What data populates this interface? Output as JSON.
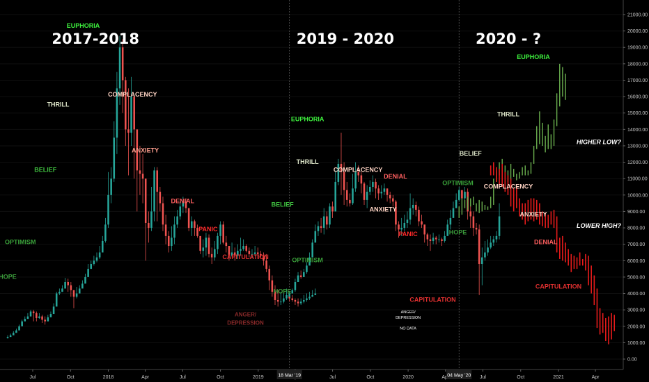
{
  "chart_data": {
    "type": "candlestick",
    "titles": [
      {
        "text": "2017-2018",
        "x": "2017-12"
      },
      {
        "text": "2019 - 2020",
        "x": "2019-08"
      },
      {
        "text": "2020 - ?",
        "x": "2020-09"
      }
    ],
    "y_axis": {
      "ylim": [
        -300,
        21500
      ],
      "ticks": [
        "0.00",
        "1000.00",
        "2000.00",
        "3000.00",
        "4000.00",
        "5000.00",
        "6000.00",
        "7000.00",
        "8000.00",
        "9000.00",
        "10000.00",
        "11000.00",
        "12000.00",
        "13000.00",
        "14000.00",
        "15000.00",
        "16000.00",
        "17000.00",
        "18000.00",
        "19000.00",
        "20000.00",
        "21000.00"
      ],
      "tick_values": [
        0,
        1000,
        2000,
        3000,
        4000,
        5000,
        6000,
        7000,
        8000,
        9000,
        10000,
        11000,
        12000,
        13000,
        14000,
        15000,
        16000,
        17000,
        18000,
        19000,
        20000,
        21000
      ]
    },
    "x_axis": {
      "ticks": [
        {
          "label": "Jul",
          "date": "2017-07"
        },
        {
          "label": "Oct",
          "date": "2017-10"
        },
        {
          "label": "2018",
          "date": "2018-01"
        },
        {
          "label": "Apr",
          "date": "2018-04"
        },
        {
          "label": "Jul",
          "date": "2018-07"
        },
        {
          "label": "Oct",
          "date": "2018-10"
        },
        {
          "label": "2019",
          "date": "2019-01"
        },
        {
          "label": "Apr",
          "date": "2019-04"
        },
        {
          "label": "Jul",
          "date": "2019-07"
        },
        {
          "label": "Oct",
          "date": "2019-10"
        },
        {
          "label": "2020",
          "date": "2020-01"
        },
        {
          "label": "Apr",
          "date": "2020-04"
        },
        {
          "label": "Jul",
          "date": "2020-07"
        },
        {
          "label": "Oct",
          "date": "2020-10"
        },
        {
          "label": "2021",
          "date": "2021-01"
        },
        {
          "label": "Apr",
          "date": "2021-04"
        }
      ],
      "markers": [
        {
          "label": "18 Mar '19",
          "date": "2019-03-18"
        },
        {
          "label": "04 May '20",
          "date": "2020-05-04"
        }
      ]
    },
    "phase_labels": [
      {
        "text": "HOPE",
        "color": "#3a9a3a",
        "date": "2017-05",
        "y": 4900
      },
      {
        "text": "OPTIMISM",
        "color": "#3aa13a",
        "date": "2017-06",
        "y": 7000
      },
      {
        "text": "BELIEF",
        "color": "#3fbf3f",
        "date": "2017-08",
        "y": 11400
      },
      {
        "text": "THRILL",
        "color": "#dde5c8",
        "date": "2017-09",
        "y": 15400
      },
      {
        "text": "EUPHORIA",
        "color": "#3ef03e",
        "date": "2017-11",
        "y": 20200
      },
      {
        "text": "COMPLACENCY",
        "color": "#ffd4c4",
        "date": "2018-03",
        "y": 16000
      },
      {
        "text": "ANXIETY",
        "color": "#ff9f8f",
        "date": "2018-04",
        "y": 12600
      },
      {
        "text": "DENIAL",
        "color": "#ff5f5f",
        "date": "2018-07",
        "y": 9500
      },
      {
        "text": "PANIC",
        "color": "#ff2a2a",
        "date": "2018-09",
        "y": 7800
      },
      {
        "text": "CAPITULATION",
        "color": "#e23030",
        "date": "2018-12",
        "y": 6100
      },
      {
        "text": "ANGER/",
        "color": "#8a2a2a",
        "date": "2018-12",
        "y": 2600
      },
      {
        "text": "DEPRESSION",
        "color": "#8a2a2a",
        "date": "2018-12",
        "y": 2100
      },
      {
        "text": "HOPE",
        "color": "#3a9a3a",
        "date": "2019-03",
        "y": 4000
      },
      {
        "text": "BELIEF",
        "color": "#3fbf3f",
        "date": "2019-03",
        "y": 9300
      },
      {
        "text": "OPTIMISM",
        "color": "#3aa13a",
        "date": "2019-05",
        "y": 5900
      },
      {
        "text": "THRILL",
        "color": "#dde5c8",
        "date": "2019-05",
        "y": 11900
      },
      {
        "text": "EUPHORIA",
        "color": "#3ef03e",
        "date": "2019-05",
        "y": 14500
      },
      {
        "text": "COMPLACENCY",
        "color": "#ffd4c4",
        "date": "2019-09",
        "y": 11400
      },
      {
        "text": "DENIAL",
        "color": "#ff5f5f",
        "date": "2019-12",
        "y": 11000
      },
      {
        "text": "ANXIETY",
        "color": "#ffd4c4",
        "date": "2019-11",
        "y": 9000
      },
      {
        "text": "PANIC",
        "color": "#ff2a2a",
        "date": "2020-01",
        "y": 7500
      },
      {
        "text": "CAPITULATION",
        "color": "#e23030",
        "date": "2020-03",
        "y": 3500
      },
      {
        "text": "ANGER/",
        "color": "#ffffff",
        "date": "2020-01",
        "y": 2800
      },
      {
        "text": "DEPRESSION",
        "color": "#ffffff",
        "date": "2020-01",
        "y": 2450
      },
      {
        "text": "NO DATA",
        "color": "#ffffff",
        "date": "2020-01",
        "y": 1800
      },
      {
        "text": "HOPE",
        "color": "#3a9a3a",
        "date": "2020-05",
        "y": 7600
      },
      {
        "text": "OPTIMISM",
        "color": "#3aa13a",
        "date": "2020-05",
        "y": 10600
      },
      {
        "text": "BELIEF",
        "color": "#dde5c8",
        "date": "2020-06",
        "y": 12400
      },
      {
        "text": "THRILL",
        "color": "#dde5c8",
        "date": "2020-09",
        "y": 14800
      },
      {
        "text": "EUPHORIA",
        "color": "#3ef03e",
        "date": "2020-11",
        "y": 18300
      },
      {
        "text": "COMPLACENCY",
        "color": "#ffd4c4",
        "date": "2020-09",
        "y": 10400
      },
      {
        "text": "ANXIETY",
        "color": "#ffd4c4",
        "date": "2020-11",
        "y": 8700
      },
      {
        "text": "DENIAL",
        "color": "#ff5f5f",
        "date": "2020-12",
        "y": 7000
      },
      {
        "text": "CAPITULATION",
        "color": "#e23030",
        "date": "2021-01",
        "y": 4300
      }
    ],
    "side_questions": [
      {
        "text": "HIGHER LOW?",
        "y": 13100
      },
      {
        "text": "LOWER HIGH?",
        "y": 8000
      }
    ],
    "series_2017_2018": {
      "start_date": "2017-05-01",
      "step_days": 7,
      "color_up": "#26a69a",
      "color_down": "#ef5350",
      "close": [
        1350,
        1450,
        1600,
        1750,
        2000,
        2300,
        2450,
        2600,
        2900,
        2800,
        2500,
        2600,
        2400,
        2300,
        2550,
        2750,
        3200,
        4000,
        4100,
        4300,
        4700,
        4500,
        4200,
        3800,
        4000,
        4300,
        4600,
        5000,
        5500,
        5800,
        6000,
        6200,
        6500,
        7200,
        8200,
        10000,
        11000,
        13500,
        16500,
        19000,
        17000,
        14000,
        13800,
        16000,
        14000,
        11500,
        11300,
        11000,
        8300,
        8000,
        9000,
        11500,
        10200,
        9500,
        8200,
        7500,
        6900,
        7400,
        8200,
        8700,
        9300,
        9600,
        9200,
        8000,
        8400,
        8000,
        7500,
        6600,
        6800,
        7400,
        6400,
        6200,
        6700,
        7500,
        8200,
        7100,
        6900,
        6300,
        6500,
        6300,
        6600,
        6700,
        6900,
        6600,
        6400,
        6400,
        6500,
        6400,
        6300,
        6000,
        5500,
        4800,
        4100,
        3600,
        3500,
        3500,
        3700,
        3900,
        3700,
        3600,
        3500,
        3400,
        3500,
        3600,
        3700,
        3800,
        3900,
        4000
      ],
      "high": [
        1450,
        1550,
        1700,
        1850,
        2100,
        2400,
        2600,
        2800,
        3000,
        3000,
        2900,
        2800,
        2700,
        2600,
        2700,
        2900,
        3400,
        4100,
        4300,
        4500,
        4950,
        4900,
        4700,
        4200,
        4400,
        4500,
        4800,
        5200,
        5800,
        6000,
        6300,
        6500,
        6900,
        7500,
        8600,
        11400,
        11700,
        14500,
        17500,
        19700,
        19500,
        17200,
        16500,
        17200,
        16000,
        13800,
        13000,
        12500,
        11000,
        9000,
        10500,
        11700,
        11700,
        10500,
        9900,
        8800,
        7800,
        8100,
        8700,
        9100,
        9600,
        9900,
        9800,
        8800,
        8700,
        8500,
        8200,
        7200,
        7300,
        7700,
        7600,
        6800,
        7200,
        7700,
        8400,
        8400,
        7500,
        6900,
        7100,
        6800,
        7000,
        7400,
        7300,
        7000,
        6800,
        6700,
        6900,
        6800,
        6600,
        6500,
        6400,
        5700,
        5100,
        4500,
        4200,
        4100,
        4100,
        4300,
        4100,
        3900,
        3700,
        3700,
        3700,
        3900,
        4000,
        4100,
        4200,
        4300
      ],
      "low": [
        1250,
        1350,
        1500,
        1650,
        1850,
        2100,
        2300,
        2450,
        2600,
        2300,
        2300,
        2450,
        2200,
        2100,
        2300,
        2600,
        3000,
        3600,
        3900,
        4100,
        4300,
        4100,
        3800,
        3100,
        3700,
        4000,
        4400,
        4800,
        5200,
        5500,
        5700,
        5900,
        6100,
        6600,
        7100,
        8000,
        9500,
        10800,
        12500,
        15500,
        15000,
        13000,
        11200,
        13000,
        11000,
        9000,
        10000,
        9500,
        6000,
        7100,
        7800,
        8400,
        8400,
        9000,
        7800,
        7000,
        6500,
        6600,
        7000,
        8000,
        8500,
        8900,
        8900,
        7800,
        7500,
        7500,
        7400,
        6400,
        6200,
        6300,
        6200,
        5800,
        6000,
        6400,
        7000,
        7000,
        6500,
        6000,
        6200,
        6000,
        6100,
        6300,
        6600,
        6500,
        6200,
        6200,
        6300,
        6100,
        6200,
        5700,
        5300,
        4200,
        3800,
        3300,
        3200,
        3300,
        3400,
        3600,
        3500,
        3500,
        3300,
        3200,
        3300,
        3400,
        3500,
        3600,
        3800,
        3900
      ]
    },
    "series_2019_2020": {
      "start_date": "2019-03-18",
      "step_days": 7,
      "color_up": "#26a69a",
      "color_down": "#ef5350",
      "close": [
        4000,
        4200,
        4700,
        5100,
        5000,
        5300,
        5700,
        6200,
        7100,
        7800,
        8100,
        8000,
        8700,
        8200,
        9300,
        9000,
        10800,
        11900,
        11400,
        10300,
        9700,
        9500,
        10400,
        11400,
        11200,
        10700,
        9700,
        10200,
        10500,
        10800,
        10400,
        10100,
        10200,
        10400,
        10000,
        9800,
        9600,
        8200,
        7900,
        8000,
        8300,
        8500,
        9200,
        9400,
        9100,
        8400,
        8200,
        7600,
        7300,
        7200,
        7400,
        7300,
        7300,
        7200,
        7500,
        8200,
        8600,
        9200,
        9700,
        10300,
        9800,
        10200,
        9000,
        8700,
        8000,
        7900,
        5800,
        6200,
        6500,
        6800,
        7100,
        7300,
        7500,
        8700
      ],
      "high": [
        4100,
        4300,
        4900,
        5300,
        5400,
        5500,
        5900,
        6500,
        7300,
        8200,
        8400,
        8600,
        9200,
        9000,
        9500,
        9600,
        11500,
        12200,
        13800,
        12000,
        10800,
        10100,
        11300,
        12000,
        11800,
        11400,
        10800,
        10600,
        10900,
        11200,
        11000,
        10600,
        10600,
        10700,
        10400,
        10200,
        10000,
        9700,
        8400,
        8600,
        8800,
        9000,
        10100,
        9800,
        9600,
        9300,
        8800,
        8200,
        7700,
        7600,
        7700,
        7500,
        7600,
        7400,
        7800,
        8500,
        9100,
        9600,
        10100,
        10500,
        10300,
        10500,
        10400,
        9400,
        9000,
        8300,
        8200,
        6800,
        7200,
        7300,
        7500,
        7500,
        7800,
        9500
      ],
      "low": [
        3900,
        4000,
        4100,
        4700,
        4900,
        5000,
        5200,
        5900,
        6200,
        7200,
        7500,
        7700,
        7600,
        7900,
        8000,
        8600,
        9000,
        10600,
        10000,
        9400,
        9300,
        9300,
        9400,
        10200,
        10800,
        10100,
        9400,
        9200,
        10000,
        10200,
        9800,
        9700,
        9800,
        10000,
        9600,
        9500,
        9300,
        7800,
        7400,
        7500,
        7800,
        8000,
        8200,
        8800,
        8700,
        8100,
        8000,
        7100,
        6900,
        6600,
        7000,
        7000,
        7100,
        6900,
        7100,
        7700,
        7900,
        8700,
        9300,
        9600,
        9500,
        9500,
        8500,
        8000,
        7500,
        7600,
        3900,
        4500,
        6000,
        6300,
        6700,
        6900,
        7100,
        7300
      ]
    },
    "series_2020_up": {
      "start_date": "2020-05-04",
      "step_days": 7,
      "color": "#6bb04f",
      "high": [
        9300,
        9800,
        9700,
        9900,
        9800,
        9900,
        9500,
        9700,
        9600,
        9400,
        9300,
        9900,
        11000,
        11500,
        12000,
        12200,
        11800,
        11500,
        11900,
        11600,
        11300,
        11400,
        11700,
        11800,
        11500,
        12000,
        13000,
        14200,
        15100,
        14400,
        13600,
        14300,
        13700,
        14600,
        16200,
        18000,
        17800,
        17400
      ],
      "low": [
        8600,
        8800,
        9200,
        9100,
        9300,
        9400,
        9000,
        8900,
        9000,
        9100,
        9100,
        9200,
        9400,
        10800,
        11200,
        11400,
        11000,
        10800,
        10900,
        11100,
        10900,
        11000,
        11200,
        11200,
        11200,
        11300,
        11900,
        12800,
        13100,
        13000,
        12600,
        12800,
        12800,
        13000,
        14200,
        15400,
        16000,
        15800
      ]
    },
    "series_2020_down": {
      "start_date": "2020-07-20",
      "step_days": 7,
      "color": "#e51b1b",
      "high": [
        11800,
        12000,
        11700,
        11600,
        11900,
        11400,
        11200,
        11000,
        10400,
        10500,
        9800,
        9500,
        9500,
        9700,
        9800,
        9800,
        9700,
        9500,
        9000,
        8900,
        8800,
        9000,
        9100,
        8700,
        7400,
        7500,
        7100,
        6700,
        6400,
        6300,
        6200,
        6500,
        6100,
        6400,
        6300,
        5700,
        5100,
        4300,
        3100,
        2800,
        2500,
        2600,
        2800,
        2700
      ],
      "low": [
        11200,
        11200,
        10800,
        10600,
        10500,
        10200,
        10000,
        9300,
        9000,
        9200,
        8700,
        8500,
        8200,
        8400,
        8500,
        8400,
        8500,
        8200,
        8100,
        8000,
        8000,
        8200,
        8000,
        6500,
        6100,
        6000,
        5900,
        5700,
        5300,
        5500,
        5500,
        5700,
        5700,
        5400,
        4500,
        4000,
        3300,
        1900,
        1500,
        1600,
        1100,
        900,
        1200,
        1700
      ]
    }
  }
}
